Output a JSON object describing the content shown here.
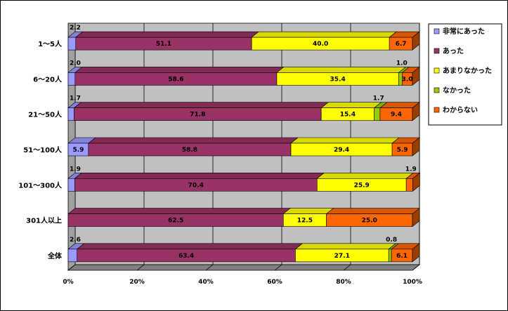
{
  "chart_data": {
    "type": "bar",
    "orientation": "horizontal",
    "stacked": "percent",
    "categories": [
      "1～5人",
      "6～20人",
      "21～50人",
      "51～100人",
      "101～300人",
      "301人以上",
      "全体"
    ],
    "series": [
      {
        "name": "非常にあった",
        "color": "#9999ff",
        "values": [
          2.2,
          2.0,
          1.7,
          5.9,
          1.9,
          0,
          2.6
        ]
      },
      {
        "name": "あった",
        "color": "#993366",
        "values": [
          51.1,
          58.6,
          71.8,
          58.8,
          70.4,
          62.5,
          63.4
        ]
      },
      {
        "name": "あまりなかった",
        "color": "#ffff00",
        "values": [
          40.0,
          35.4,
          15.4,
          29.4,
          25.9,
          12.5,
          27.1
        ]
      },
      {
        "name": "なかった",
        "color": "#99cc00",
        "values": [
          0,
          1.0,
          1.7,
          0,
          0,
          0,
          0.8
        ]
      },
      {
        "name": "わからない",
        "color": "#ff6600",
        "values": [
          6.7,
          3.0,
          9.4,
          5.9,
          1.9,
          25.0,
          6.1
        ]
      }
    ],
    "labels": [
      [
        "2.2",
        "51.1",
        "40.0",
        "",
        "6.7"
      ],
      [
        "2.0",
        "58.6",
        "35.4",
        "1.0",
        "3.0"
      ],
      [
        "1.7",
        "71.8",
        "15.4",
        "1.7",
        "9.4"
      ],
      [
        "5.9",
        "58.8",
        "29.4",
        "",
        "5.9"
      ],
      [
        "1.9",
        "70.4",
        "25.9",
        "",
        "1.9"
      ],
      [
        "",
        "62.5",
        "12.5",
        "",
        "25.0"
      ],
      [
        "2.6",
        "63.4",
        "27.1",
        "0.8",
        "6.1"
      ]
    ],
    "x_ticks": [
      "0%",
      "20%",
      "40%",
      "60%",
      "80%",
      "100%"
    ],
    "xlim": [
      0,
      100
    ],
    "grid": true,
    "legend": "right"
  }
}
